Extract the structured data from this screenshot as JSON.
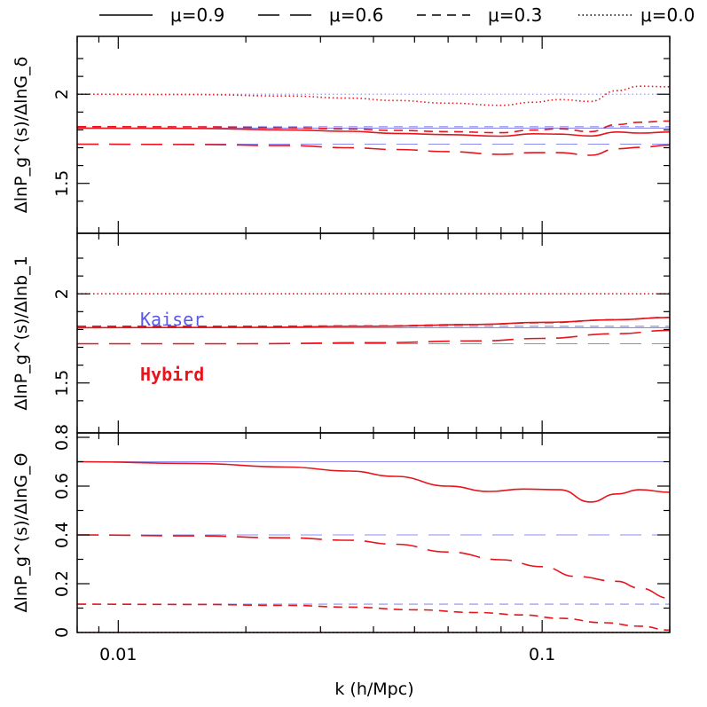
{
  "colors": {
    "kaiser": "#8c8cf0",
    "hybird": "#e8141c",
    "axes": "#000000"
  },
  "legend": [
    {
      "label": "μ=0.9",
      "dash": "solid"
    },
    {
      "label": "μ=0.6",
      "dash": "longdash"
    },
    {
      "label": "μ=0.3",
      "dash": "dash"
    },
    {
      "label": "μ=0.0",
      "dash": "dot"
    }
  ],
  "annotations": {
    "kaiser": "Kaiser",
    "hybird": "Hybird"
  },
  "chart_data": {
    "type": "line",
    "xlabel": "k (h/Mpc)",
    "xscale": "log",
    "xlim": [
      0.008,
      0.2
    ],
    "x_tick_labels": [
      "0.01",
      "0.1"
    ],
    "panels": [
      {
        "ylabel": "ΔlnP_g^(s)/ΔlnG_δ",
        "ylim": [
          1.3,
          2.3
        ],
        "y_tick_labels": [
          "1.5",
          "2"
        ],
        "kaiser": [
          {
            "mu": "0.9",
            "value": 1.81
          },
          {
            "mu": "0.6",
            "value": 1.72
          },
          {
            "mu": "0.3",
            "value": 1.818
          },
          {
            "mu": "0.0",
            "value": 2.0
          }
        ],
        "hybird": [
          {
            "mu": "0.9",
            "points": [
              [
                0.008,
                1.81
              ],
              [
                0.015,
                1.808
              ],
              [
                0.025,
                1.8
              ],
              [
                0.035,
                1.792
              ],
              [
                0.045,
                1.78
              ],
              [
                0.06,
                1.773
              ],
              [
                0.08,
                1.765
              ],
              [
                0.095,
                1.778
              ],
              [
                0.11,
                1.776
              ],
              [
                0.13,
                1.766
              ],
              [
                0.15,
                1.788
              ],
              [
                0.17,
                1.782
              ],
              [
                0.2,
                1.788
              ]
            ]
          },
          {
            "mu": "0.6",
            "points": [
              [
                0.008,
                1.72
              ],
              [
                0.015,
                1.718
              ],
              [
                0.025,
                1.712
              ],
              [
                0.035,
                1.7
              ],
              [
                0.045,
                1.69
              ],
              [
                0.06,
                1.678
              ],
              [
                0.08,
                1.663
              ],
              [
                0.095,
                1.672
              ],
              [
                0.11,
                1.672
              ],
              [
                0.13,
                1.658
              ],
              [
                0.15,
                1.694
              ],
              [
                0.17,
                1.702
              ],
              [
                0.2,
                1.715
              ]
            ]
          },
          {
            "mu": "0.3",
            "points": [
              [
                0.008,
                1.818
              ],
              [
                0.015,
                1.817
              ],
              [
                0.025,
                1.812
              ],
              [
                0.035,
                1.805
              ],
              [
                0.045,
                1.797
              ],
              [
                0.06,
                1.79
              ],
              [
                0.08,
                1.784
              ],
              [
                0.095,
                1.799
              ],
              [
                0.11,
                1.806
              ],
              [
                0.13,
                1.79
              ],
              [
                0.15,
                1.83
              ],
              [
                0.17,
                1.843
              ],
              [
                0.2,
                1.85
              ]
            ]
          },
          {
            "mu": "0.0",
            "points": [
              [
                0.008,
                2.0
              ],
              [
                0.015,
                1.998
              ],
              [
                0.025,
                1.99
              ],
              [
                0.035,
                1.978
              ],
              [
                0.045,
                1.965
              ],
              [
                0.06,
                1.95
              ],
              [
                0.08,
                1.938
              ],
              [
                0.095,
                1.955
              ],
              [
                0.11,
                1.97
              ],
              [
                0.13,
                1.96
              ],
              [
                0.15,
                2.02
              ],
              [
                0.17,
                2.045
              ],
              [
                0.2,
                2.042
              ]
            ]
          }
        ]
      },
      {
        "ylabel": "ΔlnP_g^(s)/Δlnb_1",
        "ylim": [
          1.3,
          2.3
        ],
        "y_tick_labels": [
          "1.5",
          "2"
        ],
        "kaiser": [
          {
            "mu": "0.9",
            "value": 1.81
          },
          {
            "mu": "0.6",
            "value": 1.72
          },
          {
            "mu": "0.3",
            "value": 1.818
          },
          {
            "mu": "0.0",
            "value": 2.0
          }
        ],
        "hybird": [
          {
            "mu": "0.9",
            "points": [
              [
                0.008,
                1.81
              ],
              [
                0.02,
                1.812
              ],
              [
                0.04,
                1.818
              ],
              [
                0.07,
                1.828
              ],
              [
                0.1,
                1.84
              ],
              [
                0.15,
                1.855
              ],
              [
                0.2,
                1.868
              ]
            ]
          },
          {
            "mu": "0.6",
            "points": [
              [
                0.008,
                1.72
              ],
              [
                0.02,
                1.72
              ],
              [
                0.04,
                1.726
              ],
              [
                0.07,
                1.736
              ],
              [
                0.1,
                1.75
              ],
              [
                0.15,
                1.776
              ],
              [
                0.2,
                1.795
              ]
            ]
          },
          {
            "mu": "0.3",
            "points": [
              [
                0.008,
                1.818
              ],
              [
                0.02,
                1.818
              ],
              [
                0.04,
                1.82
              ],
              [
                0.07,
                1.828
              ],
              [
                0.1,
                1.838
              ],
              [
                0.15,
                1.855
              ],
              [
                0.2,
                1.868
              ]
            ]
          },
          {
            "mu": "0.0",
            "points": [
              [
                0.008,
                2.0
              ],
              [
                0.2,
                2.0
              ]
            ]
          }
        ]
      },
      {
        "ylabel": "ΔlnP_g^(s)/ΔlnG_Θ",
        "ylim": [
          0,
          1.0
        ],
        "y_tick_labels": [
          "0",
          "0.2",
          "0.4",
          "0.6",
          "0.8"
        ],
        "kaiser": [
          {
            "mu": "0.9",
            "value": 0.7
          },
          {
            "mu": "0.6",
            "value": 0.4
          },
          {
            "mu": "0.3",
            "value": 0.116
          },
          {
            "mu": "0.0",
            "value": 0.0
          }
        ],
        "hybird": [
          {
            "mu": "0.9",
            "points": [
              [
                0.008,
                0.7
              ],
              [
                0.015,
                0.693
              ],
              [
                0.025,
                0.678
              ],
              [
                0.035,
                0.662
              ],
              [
                0.045,
                0.64
              ],
              [
                0.06,
                0.6
              ],
              [
                0.075,
                0.578
              ],
              [
                0.09,
                0.588
              ],
              [
                0.11,
                0.585
              ],
              [
                0.13,
                0.535
              ],
              [
                0.15,
                0.568
              ],
              [
                0.17,
                0.585
              ],
              [
                0.2,
                0.575
              ]
            ]
          },
          {
            "mu": "0.6",
            "points": [
              [
                0.008,
                0.4
              ],
              [
                0.015,
                0.396
              ],
              [
                0.025,
                0.388
              ],
              [
                0.035,
                0.378
              ],
              [
                0.045,
                0.362
              ],
              [
                0.06,
                0.33
              ],
              [
                0.08,
                0.298
              ],
              [
                0.1,
                0.27
              ],
              [
                0.12,
                0.23
              ],
              [
                0.15,
                0.21
              ],
              [
                0.17,
                0.182
              ],
              [
                0.2,
                0.14
              ]
            ]
          },
          {
            "mu": "0.3",
            "points": [
              [
                0.008,
                0.116
              ],
              [
                0.015,
                0.115
              ],
              [
                0.025,
                0.111
              ],
              [
                0.035,
                0.104
              ],
              [
                0.05,
                0.093
              ],
              [
                0.07,
                0.082
              ],
              [
                0.09,
                0.072
              ],
              [
                0.11,
                0.058
              ],
              [
                0.14,
                0.04
              ],
              [
                0.17,
                0.026
              ],
              [
                0.2,
                0.01
              ]
            ]
          },
          {
            "mu": "0.0",
            "points": [
              [
                0.008,
                0.0
              ],
              [
                0.2,
                0.0
              ]
            ]
          }
        ]
      }
    ]
  }
}
